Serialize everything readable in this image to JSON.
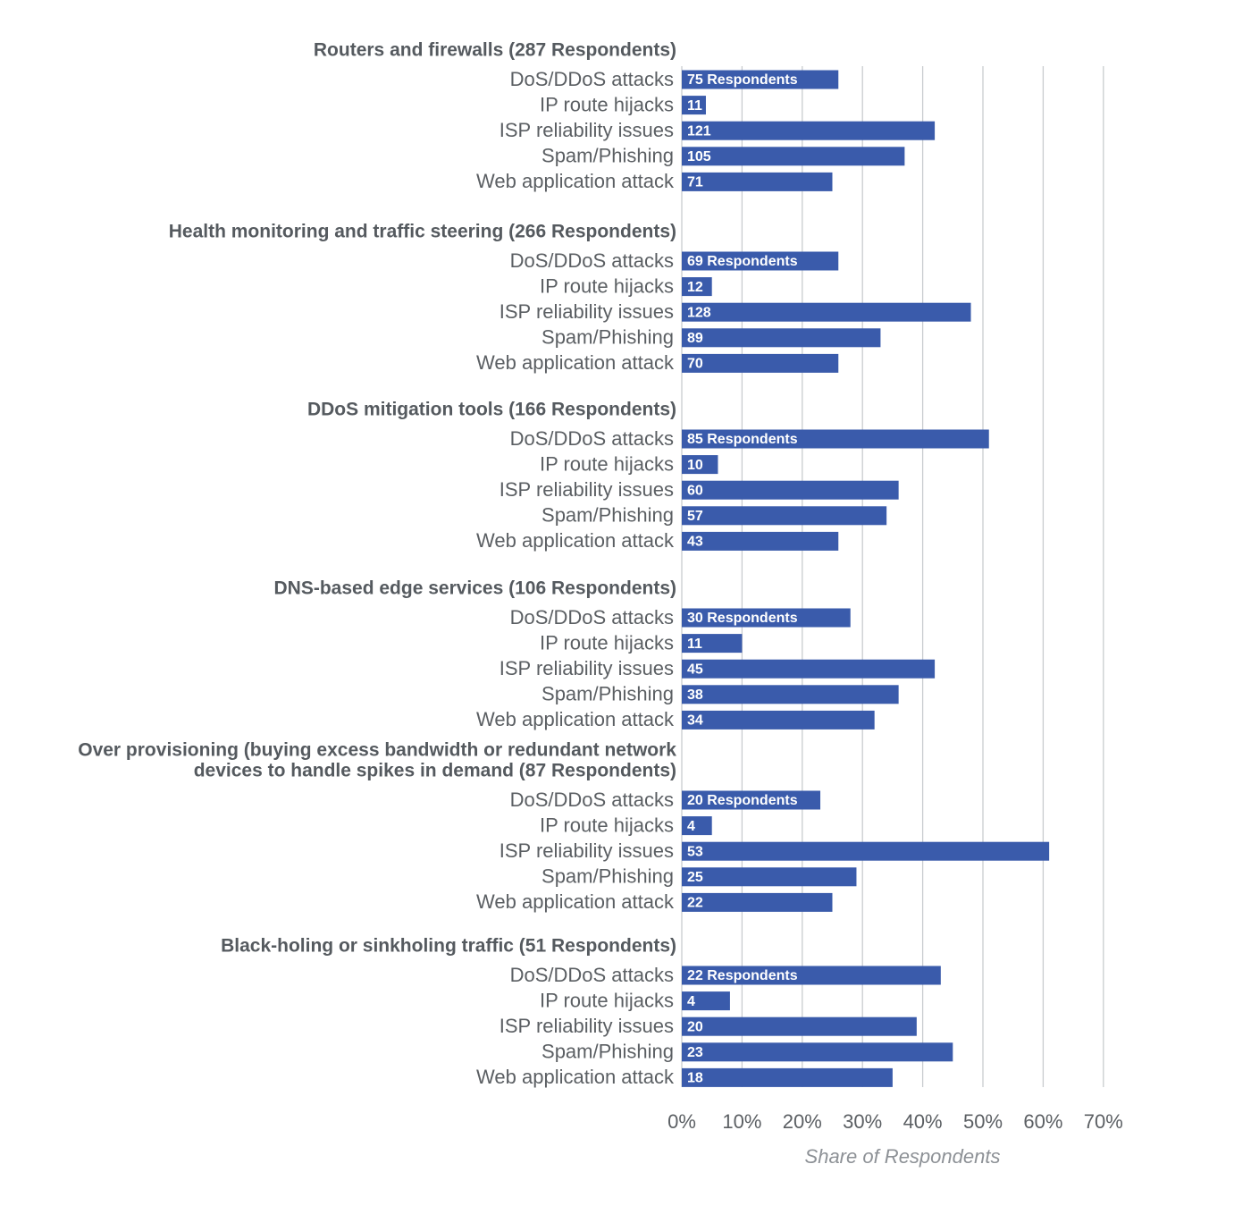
{
  "chart_data": {
    "type": "bar",
    "orientation": "horizontal",
    "xlabel": "Share of Respondents",
    "xlim": [
      0,
      70
    ],
    "xticks": [
      "0%",
      "10%",
      "20%",
      "30%",
      "40%",
      "50%",
      "60%",
      "70%"
    ],
    "grid": true,
    "categories": [
      "DoS/DDoS attacks",
      "IP route hijacks",
      "ISP reliability issues",
      "Spam/Phishing",
      "Web application attack"
    ],
    "groups": [
      {
        "title_lines": [
          "Routers and firewalls (287 Respondents)"
        ],
        "values": [
          26,
          4,
          42,
          37,
          25
        ],
        "labels": [
          "75 Respondents",
          "11",
          "121",
          "105",
          "71"
        ]
      },
      {
        "title_lines": [
          "Health monitoring and traffic steering (266 Respondents)"
        ],
        "values": [
          26,
          5,
          48,
          33,
          26
        ],
        "labels": [
          "69 Respondents",
          "12",
          "128",
          "89",
          "70"
        ]
      },
      {
        "title_lines": [
          "DDoS mitigation tools (166 Respondents)"
        ],
        "values": [
          51,
          6,
          36,
          34,
          26
        ],
        "labels": [
          "85 Respondents",
          "10",
          "60",
          "57",
          "43"
        ]
      },
      {
        "title_lines": [
          "DNS-based edge services (106 Respondents)"
        ],
        "values": [
          28,
          10,
          42,
          36,
          32
        ],
        "labels": [
          "30 Respondents",
          "11",
          "45",
          "38",
          "34"
        ]
      },
      {
        "title_lines": [
          "Over provisioning (buying excess bandwidth or redundant network",
          "devices to handle spikes in demand (87 Respondents)"
        ],
        "values": [
          23,
          5,
          61,
          29,
          25
        ],
        "labels": [
          "20 Respondents",
          "4",
          "53",
          "25",
          "22"
        ]
      },
      {
        "title_lines": [
          "Black-holing or sinkholing traffic (51 Respondents)"
        ],
        "values": [
          43,
          8,
          39,
          45,
          35
        ],
        "labels": [
          "22 Respondents",
          "4",
          "20",
          "23",
          "18"
        ]
      }
    ]
  }
}
